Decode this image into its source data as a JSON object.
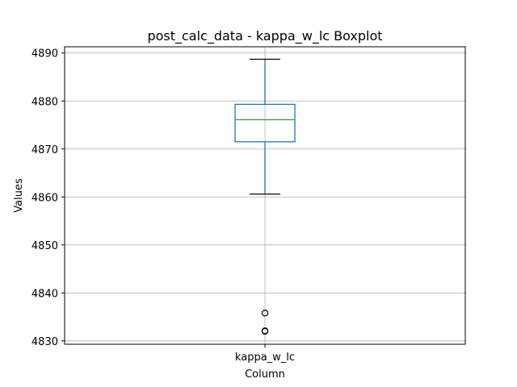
{
  "chart_data": {
    "type": "boxplot",
    "title": "post_calc_data - kappa_w_lc Boxplot",
    "xlabel": "Column",
    "ylabel": "Values",
    "ylim": [
      4829.3,
      4891.3
    ],
    "yticks": [
      4830,
      4840,
      4850,
      4860,
      4870,
      4880,
      4890
    ],
    "grid": true,
    "categories": [
      "kappa_w_lc"
    ],
    "boxes": [
      {
        "name": "kappa_w_lc",
        "whisker_low": 4860.6,
        "q1": 4871.5,
        "median": 4876.1,
        "q3": 4879.3,
        "whisker_high": 4888.7,
        "outliers": [
          4835.8,
          4832.1,
          4832.0
        ]
      }
    ],
    "colors": {
      "box": "#1f77b4",
      "median": "#2ca02c",
      "whisker_cap": "#000000",
      "grid": "#b0b0b0",
      "outlier": "#000000"
    }
  }
}
